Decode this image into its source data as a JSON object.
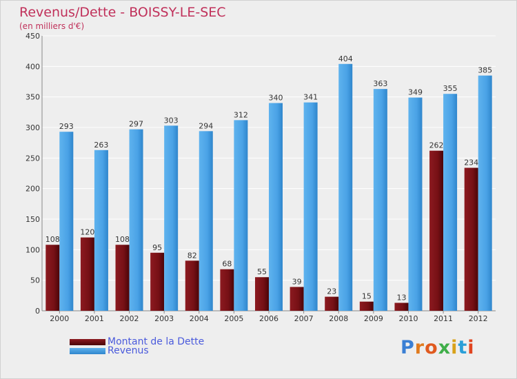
{
  "title": "Revenus/Dette - BOISSY-LE-SEC",
  "subtitle": "(en milliers d'€)",
  "logo": "Proxiti",
  "colors": {
    "dette": "#7a1016",
    "revenus": "#4da5e8",
    "title": "#c0305a",
    "legend_text": "#4a5adc"
  },
  "chart_data": {
    "type": "bar",
    "title": "Revenus/Dette - BOISSY-LE-SEC",
    "subtitle": "(en milliers d'€)",
    "xlabel": "",
    "ylabel": "",
    "categories": [
      "2000",
      "2001",
      "2002",
      "2003",
      "2004",
      "2005",
      "2006",
      "2007",
      "2008",
      "2009",
      "2010",
      "2011",
      "2012"
    ],
    "series": [
      {
        "name": "Montant de la Dette",
        "values": [
          108,
          120,
          108,
          95,
          82,
          68,
          55,
          39,
          23,
          15,
          13,
          262,
          234
        ]
      },
      {
        "name": "Revenus",
        "values": [
          293,
          263,
          297,
          303,
          294,
          312,
          340,
          341,
          404,
          363,
          349,
          355,
          385
        ]
      }
    ],
    "ylim": [
      0,
      450
    ],
    "yticks": [
      0,
      50,
      100,
      150,
      200,
      250,
      300,
      350,
      400,
      450
    ],
    "grid": true,
    "legend_position": "bottom-left"
  }
}
